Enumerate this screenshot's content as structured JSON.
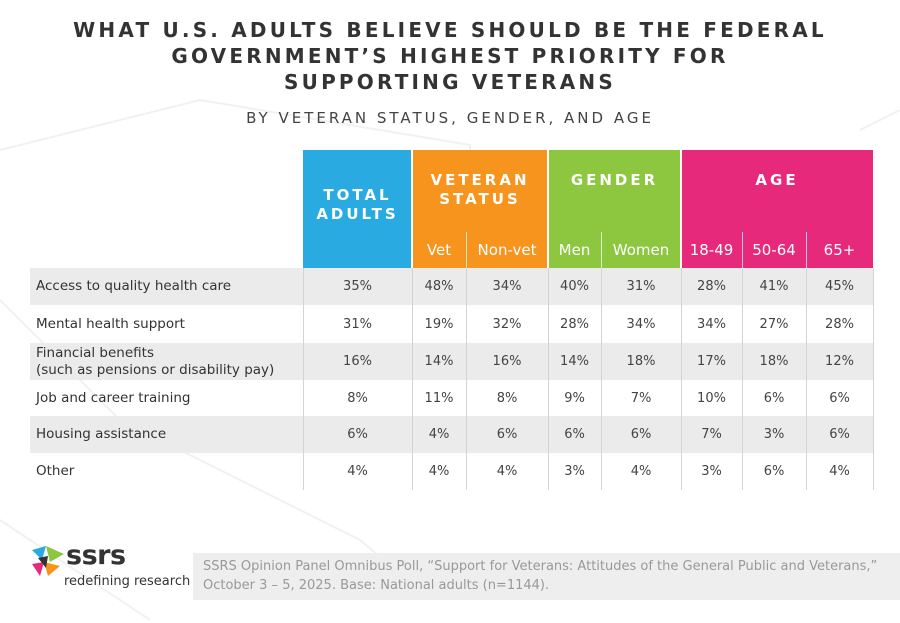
{
  "title": [
    "WHAT U.S. ADULTS BELIEVE SHOULD BE THE FEDERAL",
    "GOVERNMENT’S HIGHEST PRIORITY FOR",
    "SUPPORTING VETERANS"
  ],
  "subtitle": "BY VETERAN STATUS, GENDER, AND AGE",
  "header": {
    "groups": [
      {
        "label": "TOTAL\nADULTS",
        "color": "#29abe2"
      },
      {
        "label": "VETERAN\nSTATUS",
        "color": "#f7941d"
      },
      {
        "label": "GENDER",
        "color": "#8dc63f"
      },
      {
        "label": "AGE",
        "color": "#e6297b"
      }
    ],
    "subcolumns": [
      "Vet",
      "Non-vet",
      "Men",
      "Women",
      "18-49",
      "50-64",
      "65+"
    ]
  },
  "rows": [
    {
      "label": "Access to quality health care",
      "values": [
        "35%",
        "48%",
        "34%",
        "40%",
        "31%",
        "28%",
        "41%",
        "45%"
      ]
    },
    {
      "label": "Mental health support",
      "values": [
        "31%",
        "19%",
        "32%",
        "28%",
        "34%",
        "34%",
        "27%",
        "28%"
      ]
    },
    {
      "label": "Financial benefits\n(such as pensions or disability pay)",
      "values": [
        "16%",
        "14%",
        "16%",
        "14%",
        "18%",
        "17%",
        "18%",
        "12%"
      ]
    },
    {
      "label": "Job and career training",
      "values": [
        "8%",
        "11%",
        "8%",
        "9%",
        "7%",
        "10%",
        "6%",
        "6%"
      ]
    },
    {
      "label": "Housing assistance",
      "values": [
        "6%",
        "4%",
        "6%",
        "6%",
        "6%",
        "7%",
        "3%",
        "6%"
      ]
    },
    {
      "label": "Other",
      "values": [
        "4%",
        "4%",
        "4%",
        "3%",
        "4%",
        "3%",
        "6%",
        "4%"
      ]
    }
  ],
  "logo": {
    "name": "ssrs",
    "tagline": "redefining research"
  },
  "source": [
    "SSRS Opinion Panel Omnibus Poll, “Support for Veterans: Attitudes of the General Public and Veterans,”",
    "October 3 – 5, 2025. Base: National adults (n=1144)."
  ]
}
